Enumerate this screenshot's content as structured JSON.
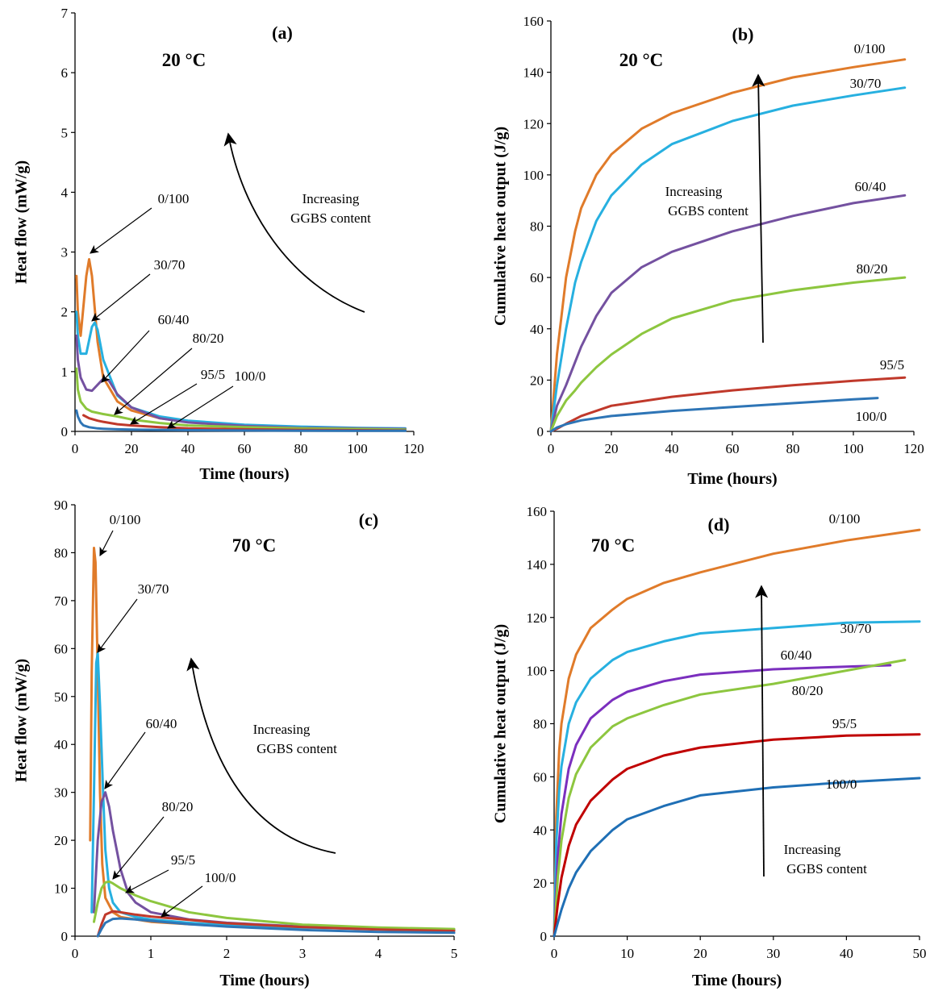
{
  "chart_data": [
    {
      "type": "line",
      "panel_label": "(a)",
      "temperature": "20 °C",
      "xlabel": "Time (hours)",
      "ylabel": "Heat flow (mW/g)",
      "xlim": [
        0,
        120
      ],
      "ylim": [
        0,
        7
      ],
      "xticks": [
        0,
        20,
        40,
        60,
        80,
        100,
        120
      ],
      "yticks": [
        0,
        1,
        2,
        3,
        4,
        5,
        6,
        7
      ],
      "annotation": [
        "Increasing",
        "GGBS content"
      ],
      "series": [
        {
          "name": "0/100",
          "color": "#E07B2A",
          "x": [
            0.5,
            1,
            2,
            3,
            4,
            5,
            6,
            8,
            10,
            15,
            20,
            30,
            40,
            60,
            80,
            100,
            117
          ],
          "y": [
            2.6,
            2.0,
            1.6,
            2.1,
            2.6,
            2.88,
            2.6,
            1.5,
            0.9,
            0.5,
            0.35,
            0.22,
            0.16,
            0.1,
            0.07,
            0.05,
            0.04
          ]
        },
        {
          "name": "30/70",
          "color": "#27B0E0",
          "x": [
            0.5,
            1,
            2,
            4,
            6,
            7,
            8,
            10,
            15,
            20,
            30,
            40,
            60,
            80,
            100,
            117
          ],
          "y": [
            2.0,
            1.6,
            1.3,
            1.3,
            1.75,
            1.82,
            1.7,
            1.2,
            0.6,
            0.4,
            0.25,
            0.18,
            0.11,
            0.08,
            0.06,
            0.05
          ]
        },
        {
          "name": "60/40",
          "color": "#7451A0",
          "x": [
            0.5,
            1,
            2,
            4,
            6,
            8,
            10,
            12,
            15,
            20,
            30,
            40,
            60,
            80,
            100,
            117
          ],
          "y": [
            1.6,
            1.2,
            0.9,
            0.7,
            0.68,
            0.78,
            0.88,
            0.85,
            0.62,
            0.4,
            0.22,
            0.15,
            0.09,
            0.06,
            0.05,
            0.04
          ]
        },
        {
          "name": "80/20",
          "color": "#8DC63F",
          "x": [
            0.5,
            1,
            2,
            4,
            6,
            8,
            10,
            15,
            20,
            30,
            40,
            60,
            80,
            100,
            117
          ],
          "y": [
            1.05,
            0.7,
            0.5,
            0.38,
            0.33,
            0.31,
            0.29,
            0.25,
            0.2,
            0.14,
            0.1,
            0.07,
            0.05,
            0.04,
            0.03
          ]
        },
        {
          "name": "95/5",
          "color": "#C0392B",
          "x": [
            3,
            5,
            8,
            10,
            15,
            20,
            30,
            40,
            60,
            80,
            100,
            117
          ],
          "y": [
            0.27,
            0.22,
            0.18,
            0.16,
            0.12,
            0.1,
            0.07,
            0.05,
            0.035,
            0.025,
            0.02,
            0.015
          ]
        },
        {
          "name": "100/0",
          "color": "#2E75B6",
          "x": [
            0.5,
            1,
            2,
            3,
            5,
            8,
            10,
            15,
            20,
            30,
            40,
            60,
            80,
            100,
            117
          ],
          "y": [
            0.35,
            0.25,
            0.15,
            0.1,
            0.07,
            0.05,
            0.045,
            0.035,
            0.03,
            0.025,
            0.02,
            0.015,
            0.012,
            0.01,
            0.01
          ]
        }
      ]
    },
    {
      "type": "line",
      "panel_label": "(b)",
      "temperature": "20 °C",
      "xlabel": "Time (hours)",
      "ylabel": "Cumulative heat output (J/g)",
      "xlim": [
        0,
        120
      ],
      "ylim": [
        0,
        160
      ],
      "xticks": [
        0,
        20,
        40,
        60,
        80,
        100,
        120
      ],
      "yticks": [
        0,
        20,
        40,
        60,
        80,
        100,
        120,
        140,
        160
      ],
      "annotation": [
        "Increasing",
        "GGBS content"
      ],
      "series": [
        {
          "name": "0/100",
          "color": "#E07B2A",
          "x": [
            0,
            2,
            5,
            8,
            10,
            15,
            20,
            30,
            40,
            60,
            80,
            100,
            117
          ],
          "y": [
            0,
            30,
            60,
            78,
            87,
            100,
            108,
            118,
            124,
            132,
            138,
            142,
            145
          ]
        },
        {
          "name": "30/70",
          "color": "#27B0E0",
          "x": [
            0,
            2,
            5,
            8,
            10,
            15,
            20,
            30,
            40,
            60,
            80,
            100,
            117
          ],
          "y": [
            0,
            18,
            40,
            58,
            66,
            82,
            92,
            104,
            112,
            121,
            127,
            131,
            134
          ]
        },
        {
          "name": "60/40",
          "color": "#7451A0",
          "x": [
            0,
            2,
            5,
            8,
            10,
            15,
            20,
            30,
            40,
            60,
            80,
            100,
            117
          ],
          "y": [
            0,
            10,
            18,
            27,
            33,
            45,
            54,
            64,
            70,
            78,
            84,
            89,
            92
          ]
        },
        {
          "name": "80/20",
          "color": "#8DC63F",
          "x": [
            0,
            2,
            5,
            8,
            10,
            15,
            20,
            30,
            40,
            60,
            80,
            100,
            117
          ],
          "y": [
            0,
            6,
            12,
            16,
            19,
            25,
            30,
            38,
            44,
            51,
            55,
            58,
            60
          ]
        },
        {
          "name": "95/5",
          "color": "#C0392B",
          "x": [
            0,
            2,
            5,
            10,
            20,
            40,
            60,
            80,
            100,
            117
          ],
          "y": [
            0,
            1,
            3,
            6,
            10,
            13.5,
            16,
            18,
            19.7,
            21
          ]
        },
        {
          "name": "100/0",
          "color": "#2E75B6",
          "x": [
            0,
            2,
            5,
            10,
            20,
            40,
            60,
            80,
            100,
            108
          ],
          "y": [
            0,
            1.5,
            2.8,
            4.3,
            6,
            8,
            9.5,
            11,
            12.5,
            13
          ]
        }
      ]
    },
    {
      "type": "line",
      "panel_label": "(c)",
      "temperature": "70 °C",
      "xlabel": "Time (hours)",
      "ylabel": "Heat flow (mW/g)",
      "xlim": [
        0,
        5
      ],
      "ylim": [
        0,
        90
      ],
      "xticks": [
        0,
        1,
        2,
        3,
        4,
        5
      ],
      "yticks": [
        0,
        10,
        20,
        30,
        40,
        50,
        60,
        70,
        80,
        90
      ],
      "annotation": [
        "Increasing",
        "GGBS content"
      ],
      "series": [
        {
          "name": "0/100",
          "color": "#E07B2A",
          "x": [
            0.2,
            0.22,
            0.25,
            0.27,
            0.3,
            0.33,
            0.36,
            0.4,
            0.5,
            0.6,
            0.8,
            1,
            1.5,
            2,
            3,
            4,
            5
          ],
          "y": [
            20,
            55,
            81,
            78,
            55,
            30,
            15,
            8,
            5,
            4,
            3.5,
            3,
            2.5,
            2.2,
            1.8,
            1.5,
            1.3
          ]
        },
        {
          "name": "30/70",
          "color": "#27B0E0",
          "x": [
            0.22,
            0.25,
            0.28,
            0.3,
            0.33,
            0.37,
            0.4,
            0.45,
            0.5,
            0.6,
            0.8,
            1,
            1.5,
            2,
            3,
            4,
            5
          ],
          "y": [
            5,
            30,
            57,
            59,
            48,
            30,
            18,
            10,
            7,
            5,
            4,
            3.5,
            2.8,
            2.3,
            1.8,
            1.5,
            1.3
          ]
        },
        {
          "name": "60/40",
          "color": "#7451A0",
          "x": [
            0.25,
            0.3,
            0.35,
            0.4,
            0.45,
            0.5,
            0.6,
            0.7,
            0.8,
            1,
            1.5,
            2,
            3,
            4,
            5
          ],
          "y": [
            5,
            20,
            28,
            30,
            27,
            22,
            14,
            9,
            7,
            5,
            3.5,
            2.8,
            2,
            1.6,
            1.4
          ]
        },
        {
          "name": "80/20",
          "color": "#8DC63F",
          "x": [
            0.25,
            0.3,
            0.35,
            0.4,
            0.45,
            0.5,
            0.6,
            0.8,
            1,
            1.5,
            2,
            3,
            4,
            5
          ],
          "y": [
            3,
            7,
            10,
            11.2,
            11.4,
            11,
            10,
            8.5,
            7.3,
            5,
            3.8,
            2.4,
            1.8,
            1.5
          ]
        },
        {
          "name": "95/5",
          "color": "#C0392B",
          "x": [
            0.3,
            0.35,
            0.4,
            0.5,
            0.6,
            0.8,
            1,
            1.5,
            2,
            3,
            4,
            5
          ],
          "y": [
            0,
            2.5,
            4.5,
            5.2,
            5,
            4.5,
            4.1,
            3.4,
            2.7,
            1.9,
            1.4,
            1.1
          ]
        },
        {
          "name": "100/0",
          "color": "#2E75B6",
          "x": [
            0.3,
            0.35,
            0.4,
            0.5,
            0.6,
            0.8,
            1,
            1.5,
            2,
            3,
            4,
            5
          ],
          "y": [
            0,
            1.5,
            2.8,
            3.6,
            3.7,
            3.5,
            3.2,
            2.5,
            2.0,
            1.3,
            0.9,
            0.7
          ]
        }
      ]
    },
    {
      "type": "line",
      "panel_label": "(d)",
      "temperature": "70 °C",
      "xlabel": "Time (hours)",
      "ylabel": "Cumulative heat output (J/g)",
      "xlim": [
        0,
        50
      ],
      "ylim": [
        0,
        160
      ],
      "xticks": [
        0,
        10,
        20,
        30,
        40,
        50
      ],
      "yticks": [
        0,
        20,
        40,
        60,
        80,
        100,
        120,
        140,
        160
      ],
      "annotation": [
        "Increasing",
        "GGBS content"
      ],
      "series": [
        {
          "name": "0/100",
          "color": "#E07B2A",
          "x": [
            0,
            0.3,
            0.7,
            1,
            2,
            3,
            5,
            8,
            10,
            15,
            20,
            30,
            40,
            50
          ],
          "y": [
            0,
            45,
            70,
            80,
            97,
            106,
            116,
            123,
            127,
            133,
            137,
            144,
            149,
            153
          ]
        },
        {
          "name": "30/70",
          "color": "#27B0E0",
          "x": [
            0,
            0.3,
            0.7,
            1,
            2,
            3,
            5,
            8,
            10,
            15,
            20,
            30,
            40,
            50
          ],
          "y": [
            0,
            35,
            55,
            64,
            80,
            88,
            97,
            104,
            107,
            111,
            114,
            116,
            118,
            118.5
          ]
        },
        {
          "name": "60/40",
          "color": "#7B2FBE",
          "x": [
            0,
            0.5,
            1,
            2,
            3,
            5,
            8,
            10,
            15,
            20,
            30,
            40,
            46
          ],
          "y": [
            0,
            30,
            46,
            63,
            72,
            82,
            89,
            92,
            96,
            98.5,
            100.5,
            101.5,
            102
          ]
        },
        {
          "name": "80/20",
          "color": "#8DC63F",
          "x": [
            0,
            0.5,
            1,
            2,
            3,
            5,
            8,
            10,
            15,
            20,
            30,
            40,
            48
          ],
          "y": [
            0,
            22,
            36,
            52,
            61,
            71,
            79,
            82,
            87,
            91,
            95,
            100,
            104
          ]
        },
        {
          "name": "95/5",
          "color": "#C00000",
          "x": [
            0,
            0.5,
            1,
            2,
            3,
            5,
            8,
            10,
            15,
            20,
            30,
            40,
            50
          ],
          "y": [
            0,
            12,
            22,
            34,
            42,
            51,
            59,
            63,
            68,
            71,
            74,
            75.5,
            76
          ]
        },
        {
          "name": "100/0",
          "color": "#1F6FB5",
          "x": [
            0,
            0.5,
            1,
            2,
            3,
            5,
            8,
            10,
            15,
            20,
            30,
            40,
            50
          ],
          "y": [
            0,
            5,
            10,
            18,
            24,
            32,
            40,
            44,
            49,
            53,
            56,
            58,
            59.5
          ]
        }
      ]
    }
  ]
}
